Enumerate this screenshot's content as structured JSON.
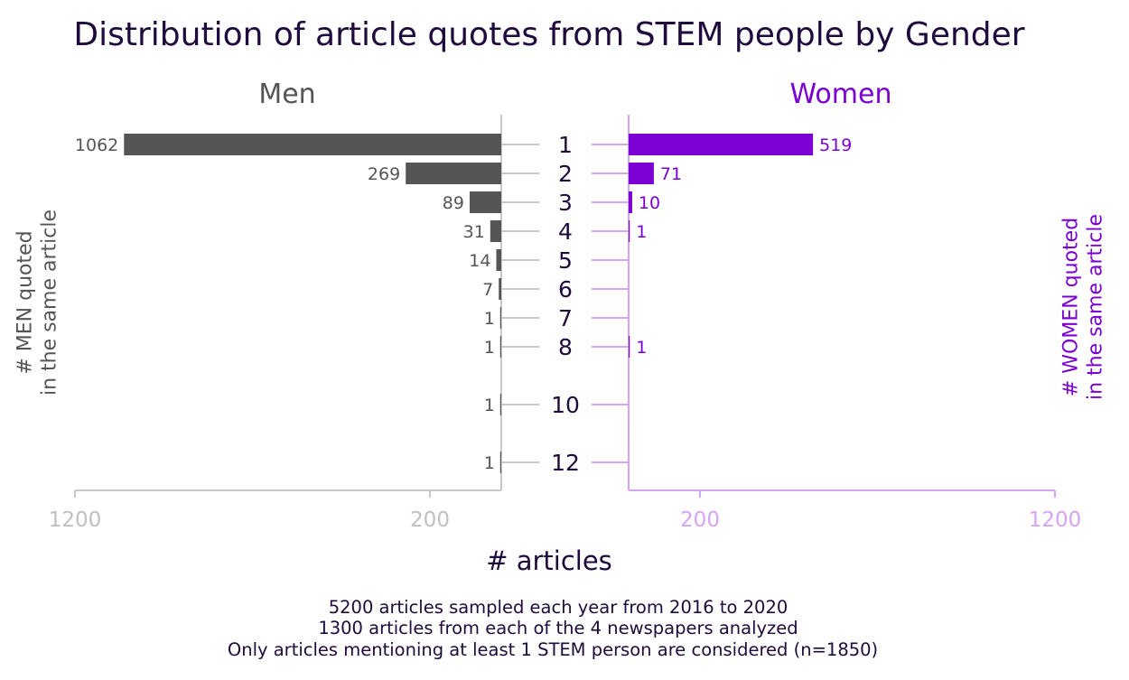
{
  "title": "Distribution of article quotes from STEM people by Gender",
  "footnotes": [
    "5200 articles sampled each year from 2016 to 2020",
    "1300 articles from each of the 4 newspapers analyzed",
    "Only articles mentioning at least 1 STEM person are considered (n=1850)"
  ],
  "colors": {
    "men": "#555555",
    "women": "#7b00d4",
    "men_axis": "#c8c8c8",
    "women_axis": "#d6a3f5",
    "text": "#1e0a3c"
  },
  "chart_data": {
    "type": "bar",
    "orientation": "horizontal-butterfly",
    "xlabel": "# articles",
    "categories": [
      "1",
      "2",
      "3",
      "4",
      "5",
      "6",
      "7",
      "8",
      "10",
      "12"
    ],
    "series": [
      {
        "name": "Men",
        "ylabel": "# MEN quoted\nin the same article",
        "values": [
          1062,
          269,
          89,
          31,
          14,
          7,
          1,
          1,
          1,
          1
        ],
        "labels": [
          "1062",
          "269",
          "89",
          "31",
          "14",
          "7",
          "1",
          "1",
          "1",
          "1"
        ],
        "xlim": [
          0,
          1200
        ],
        "ticks": [
          "1200",
          "200"
        ]
      },
      {
        "name": "Women",
        "ylabel": "# WOMEN quoted\nin the same article",
        "values": [
          519,
          71,
          10,
          1,
          0,
          0,
          0,
          1,
          0,
          0
        ],
        "labels": [
          "519",
          "71",
          "10",
          "1",
          "",
          "",
          "",
          "1",
          "",
          ""
        ],
        "xlim": [
          0,
          1200
        ],
        "ticks": [
          "200",
          "1200"
        ]
      }
    ]
  }
}
